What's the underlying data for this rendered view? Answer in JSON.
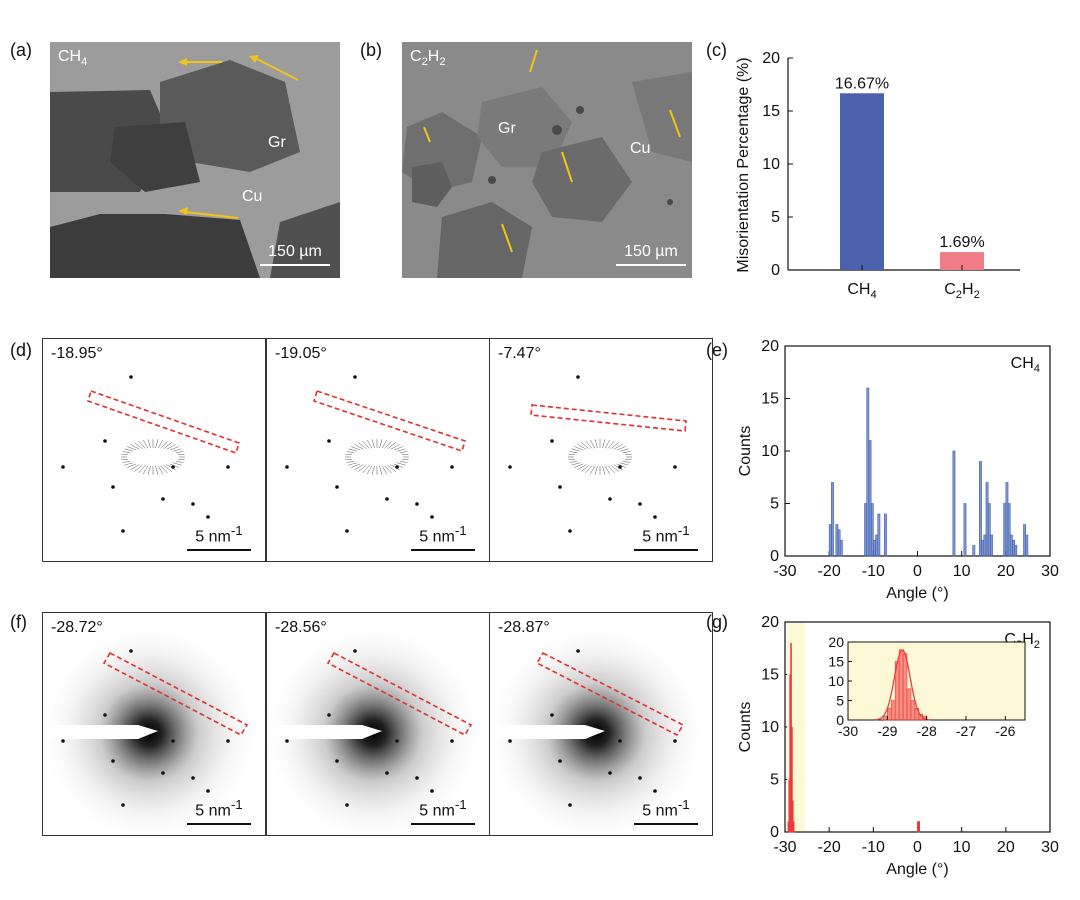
{
  "panels": {
    "a": {
      "label": "(a)",
      "gas_main": "CH",
      "gas_sub": "4",
      "gr_label": "Gr",
      "cu_label": "Cu",
      "scale": "150 µm"
    },
    "b": {
      "label": "(b)",
      "gas_c": "C",
      "gas_sub1": "2",
      "gas_h": "H",
      "gas_sub2": "2",
      "gr_label": "Gr",
      "cu_label": "Cu",
      "scale": "150 µm"
    },
    "c": {
      "label": "(c)"
    },
    "d": {
      "label": "(d)",
      "angles": [
        "-18.95°",
        "-19.05°",
        "-7.47°"
      ],
      "scale": "5 nm",
      "scale_sup": "-1"
    },
    "e": {
      "label": "(e)"
    },
    "f": {
      "label": "(f)",
      "angles": [
        "-28.72°",
        "-28.56°",
        "-28.87°"
      ],
      "scale": "5 nm",
      "scale_sup": "-1"
    },
    "g": {
      "label": "(g)"
    }
  },
  "colors": {
    "ch4_bar": "#4a62ad",
    "c2h2_bar": "#f07c86",
    "hist_blue": "#3f5fb3",
    "hist_red": "#ee3b3b",
    "inset_bg": "#fdf9d7",
    "arrow_yellow": "#f2c418",
    "dash_red": "#e03030"
  },
  "chart_data": [
    {
      "id": "c",
      "type": "bar",
      "categories": [
        "CH4",
        "C2H2"
      ],
      "category_labels": [
        {
          "main": "CH",
          "sub": "4"
        },
        {
          "main": "C",
          "sub": "2",
          "main2": "H",
          "sub2": "2"
        }
      ],
      "values": [
        16.67,
        1.69
      ],
      "value_labels": [
        "16.67%",
        "1.69%"
      ],
      "ylabel": "Misorientation Percentage (%)",
      "ylim": [
        0,
        20
      ],
      "yticks": [
        0,
        5,
        10,
        15,
        20
      ],
      "grid": false
    },
    {
      "id": "e",
      "type": "bar",
      "annotation": {
        "main": "CH",
        "sub": "4"
      },
      "x": [
        -20,
        -19.5,
        -18.5,
        -18,
        -17.5,
        -12,
        -11.5,
        -11,
        -10.5,
        -10,
        -9.5,
        -9,
        -7.5,
        8,
        10.5,
        12.5,
        14,
        14.5,
        15,
        15.5,
        16,
        16.5,
        19.5,
        20,
        20.5,
        21,
        21.5,
        22,
        24,
        24.5
      ],
      "values": [
        3,
        7,
        3,
        2.5,
        1.5,
        5,
        16,
        11,
        5,
        1.5,
        2,
        4,
        4,
        10,
        5,
        1,
        9,
        1.5,
        2,
        7,
        5,
        2,
        5,
        7,
        5,
        2,
        1.5,
        1,
        3,
        2
      ],
      "bin_width": 0.5,
      "xlabel": "Angle (°)",
      "ylabel": "Counts",
      "xlim": [
        -30,
        30
      ],
      "ylim": [
        0,
        20
      ],
      "xticks": [
        -30,
        -20,
        -10,
        0,
        10,
        20,
        30
      ],
      "yticks": [
        0,
        5,
        10,
        15,
        20
      ]
    },
    {
      "id": "g",
      "type": "bar",
      "annotation": {
        "main": "C",
        "sub": "2",
        "main2": "H",
        "sub2": "2"
      },
      "x": [
        -29.3,
        -29.1,
        -28.9,
        -28.7,
        -28.5,
        -28.3,
        -28.1,
        0
      ],
      "values": [
        1,
        5,
        15,
        18,
        10,
        3,
        1,
        1
      ],
      "xlabel": "Angle (°)",
      "ylabel": "Counts",
      "xlim": [
        -30,
        30
      ],
      "ylim": [
        0,
        20
      ],
      "xticks": [
        -30,
        -20,
        -10,
        0,
        10,
        20,
        30
      ],
      "yticks": [
        0,
        5,
        10,
        15,
        20
      ],
      "inset": {
        "x": [
          -29.05,
          -28.95,
          -28.85,
          -28.75,
          -28.65,
          -28.55,
          -28.45,
          -28.35,
          -28.25,
          -28.15,
          -28.05
        ],
        "values": [
          1,
          3,
          5,
          15,
          18,
          17,
          8,
          5,
          3,
          1.5,
          1
        ],
        "bin_width": 0.1,
        "xlim": [
          -30,
          -25.5
        ],
        "ylim": [
          0,
          20
        ],
        "xticks": [
          -30,
          -29,
          -28,
          -27,
          -26
        ],
        "yticks": [
          0,
          5,
          10,
          15,
          20
        ],
        "fit": {
          "type": "gaussian",
          "center": -28.62,
          "sigma": 0.2,
          "amplitude": 18
        }
      }
    }
  ]
}
